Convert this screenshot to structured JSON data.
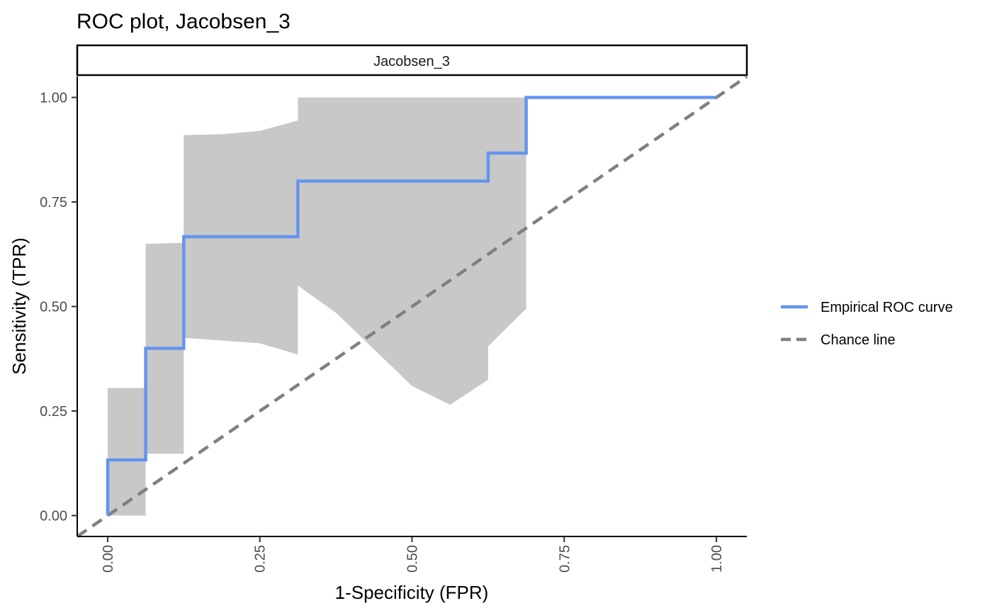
{
  "chart_data": {
    "type": "line",
    "title": "ROC plot, Jacobsen_3",
    "facet_label": "Jacobsen_3",
    "xlabel": "1-Specificity (FPR)",
    "ylabel": "Sensitivity (TPR)",
    "xlim": [
      -0.05,
      1.05
    ],
    "ylim": [
      -0.05,
      1.05
    ],
    "x_ticks": [
      0,
      0.25,
      0.5,
      0.75,
      1
    ],
    "x_tick_labels": [
      "0.00",
      "0.25",
      "0.50",
      "0.75",
      "1.00"
    ],
    "y_ticks": [
      0,
      0.25,
      0.5,
      0.75,
      1
    ],
    "y_tick_labels": [
      "0.00",
      "0.25",
      "0.50",
      "0.75",
      "1.00"
    ],
    "grid": false,
    "legend_position": "right",
    "series": [
      {
        "name": "Empirical ROC curve",
        "color": "#6495ED",
        "style": "solid",
        "x": [
          0,
          0,
          0.0625,
          0.0625,
          0.125,
          0.125,
          0.3125,
          0.3125,
          0.625,
          0.625,
          0.6875,
          0.6875,
          1.0
        ],
        "y": [
          0,
          0.133,
          0.133,
          0.4,
          0.4,
          0.667,
          0.667,
          0.8,
          0.8,
          0.867,
          0.867,
          1.0,
          1.0
        ]
      },
      {
        "name": "Chance line",
        "color": "#808080",
        "style": "dashed",
        "x": [
          -0.05,
          1.05
        ],
        "y": [
          -0.05,
          1.05
        ]
      }
    ],
    "confidence_band": {
      "color": "#C8C8C8",
      "upper": [
        {
          "x": 0,
          "y": 0.305
        },
        {
          "x": 0.0625,
          "y": 0.305
        },
        {
          "x": 0.0625,
          "y": 0.65
        },
        {
          "x": 0.125,
          "y": 0.652
        },
        {
          "x": 0.125,
          "y": 0.91
        },
        {
          "x": 0.1875,
          "y": 0.912
        },
        {
          "x": 0.25,
          "y": 0.92
        },
        {
          "x": 0.3125,
          "y": 0.945
        },
        {
          "x": 0.3125,
          "y": 1.0
        },
        {
          "x": 0.6875,
          "y": 1.0
        }
      ],
      "lower": [
        {
          "x": 0.6875,
          "y": 0.495
        },
        {
          "x": 0.625,
          "y": 0.405
        },
        {
          "x": 0.625,
          "y": 0.325
        },
        {
          "x": 0.5625,
          "y": 0.265
        },
        {
          "x": 0.5,
          "y": 0.31
        },
        {
          "x": 0.375,
          "y": 0.485
        },
        {
          "x": 0.3125,
          "y": 0.55
        },
        {
          "x": 0.3125,
          "y": 0.385
        },
        {
          "x": 0.25,
          "y": 0.412
        },
        {
          "x": 0.125,
          "y": 0.425
        },
        {
          "x": 0.125,
          "y": 0.148
        },
        {
          "x": 0.0625,
          "y": 0.148
        },
        {
          "x": 0.0625,
          "y": 0.0
        },
        {
          "x": 0,
          "y": 0.0
        }
      ]
    }
  }
}
